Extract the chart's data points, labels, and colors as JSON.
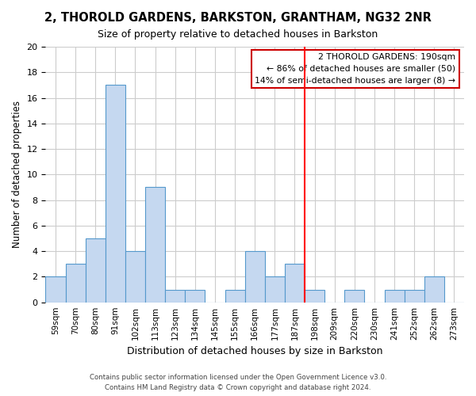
{
  "title1": "2, THOROLD GARDENS, BARKSTON, GRANTHAM, NG32 2NR",
  "title2": "Size of property relative to detached houses in Barkston",
  "xlabel": "Distribution of detached houses by size in Barkston",
  "ylabel": "Number of detached properties",
  "bar_labels": [
    "59sqm",
    "70sqm",
    "80sqm",
    "91sqm",
    "102sqm",
    "113sqm",
    "123sqm",
    "134sqm",
    "145sqm",
    "155sqm",
    "166sqm",
    "177sqm",
    "187sqm",
    "198sqm",
    "209sqm",
    "220sqm",
    "230sqm",
    "241sqm",
    "252sqm",
    "262sqm",
    "273sqm"
  ],
  "bar_values": [
    2,
    3,
    5,
    17,
    4,
    9,
    1,
    1,
    0,
    1,
    4,
    2,
    3,
    1,
    0,
    1,
    0,
    1,
    1,
    2,
    0
  ],
  "bar_color": "#c5d8f0",
  "bar_edge_color": "#5599cc",
  "vline_x": 12.5,
  "vline_color": "red",
  "ylim": [
    0,
    20
  ],
  "yticks": [
    0,
    2,
    4,
    6,
    8,
    10,
    12,
    14,
    16,
    18,
    20
  ],
  "annotation_title": "2 THOROLD GARDENS: 190sqm",
  "annotation_line1": "← 86% of detached houses are smaller (50)",
  "annotation_line2": "14% of semi-detached houses are larger (8) →",
  "annotation_box_color": "#ffffff",
  "annotation_box_edge": "#cc0000",
  "footer1": "Contains HM Land Registry data © Crown copyright and database right 2024.",
  "footer2": "Contains public sector information licensed under the Open Government Licence v3.0.",
  "background_color": "#ffffff",
  "grid_color": "#cccccc"
}
